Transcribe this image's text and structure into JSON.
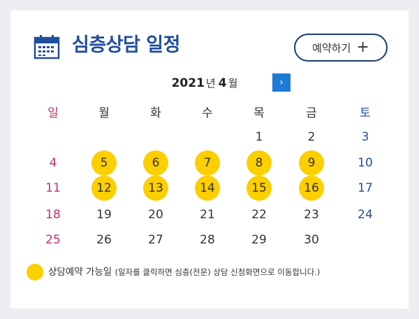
{
  "header": {
    "title": "심층상담 일정",
    "reserve_label": "예약하기",
    "reserve_plus": "+"
  },
  "nav": {
    "year": "2021",
    "year_unit": "년",
    "month": "4",
    "month_unit": "월",
    "next": "›"
  },
  "weekdays": [
    "일",
    "월",
    "화",
    "수",
    "목",
    "금",
    "토"
  ],
  "weeks": [
    [
      "",
      "",
      "",
      "",
      "1",
      "2",
      "3"
    ],
    [
      "4",
      "5",
      "6",
      "7",
      "8",
      "9",
      "10"
    ],
    [
      "11",
      "12",
      "13",
      "14",
      "15",
      "16",
      "17"
    ],
    [
      "18",
      "19",
      "20",
      "21",
      "22",
      "23",
      "24"
    ],
    [
      "25",
      "26",
      "27",
      "28",
      "29",
      "30",
      ""
    ]
  ],
  "available_days": [
    "5",
    "6",
    "7",
    "8",
    "9",
    "12",
    "13",
    "14",
    "15",
    "16"
  ],
  "legend": {
    "label": "상담예약 가능일",
    "note": "(일자를 클릭하면 심층(전문) 상담 신청화면으로 이동합니다.)"
  },
  "colors": {
    "available": "#fccf00",
    "sunday": "#c0306a",
    "saturday": "#1f4e9c",
    "title": "#1f4e9c",
    "next_button": "#1f7ad6"
  }
}
